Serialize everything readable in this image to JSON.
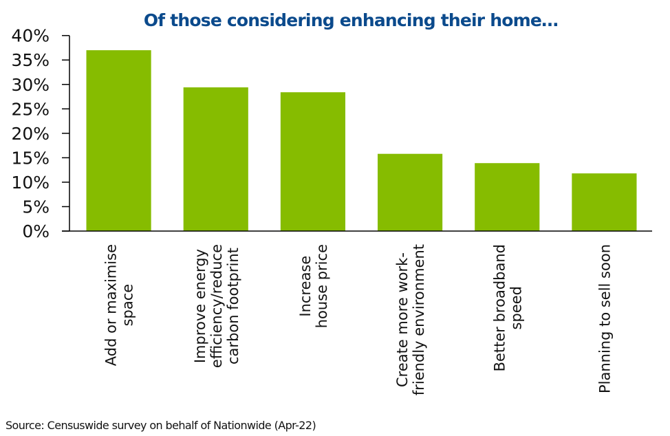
{
  "chart_data": {
    "type": "bar",
    "title": "Of those considering enhancing their home…",
    "xlabel": "",
    "ylabel": "",
    "ylim": [
      0,
      40
    ],
    "yticks": [
      "0%",
      "5%",
      "10%",
      "15%",
      "20%",
      "25%",
      "30%",
      "35%",
      "40%"
    ],
    "grid": false,
    "legend": "none",
    "categories": [
      [
        "Add or maximise",
        "space"
      ],
      [
        "Improve energy",
        "efficiency/reduce",
        "carbon footprint"
      ],
      [
        "Increase",
        "house price"
      ],
      [
        "Create more work-",
        "friendly environment"
      ],
      [
        "Better broadband",
        "speed"
      ],
      [
        "Planning to sell soon"
      ]
    ],
    "values": [
      37.0,
      29.4,
      28.4,
      15.8,
      13.9,
      11.8
    ],
    "unit": "%",
    "bar_color": "#86bc00",
    "source": "Source: Censuswide survey on behalf of Nationwide (Apr-22)"
  }
}
